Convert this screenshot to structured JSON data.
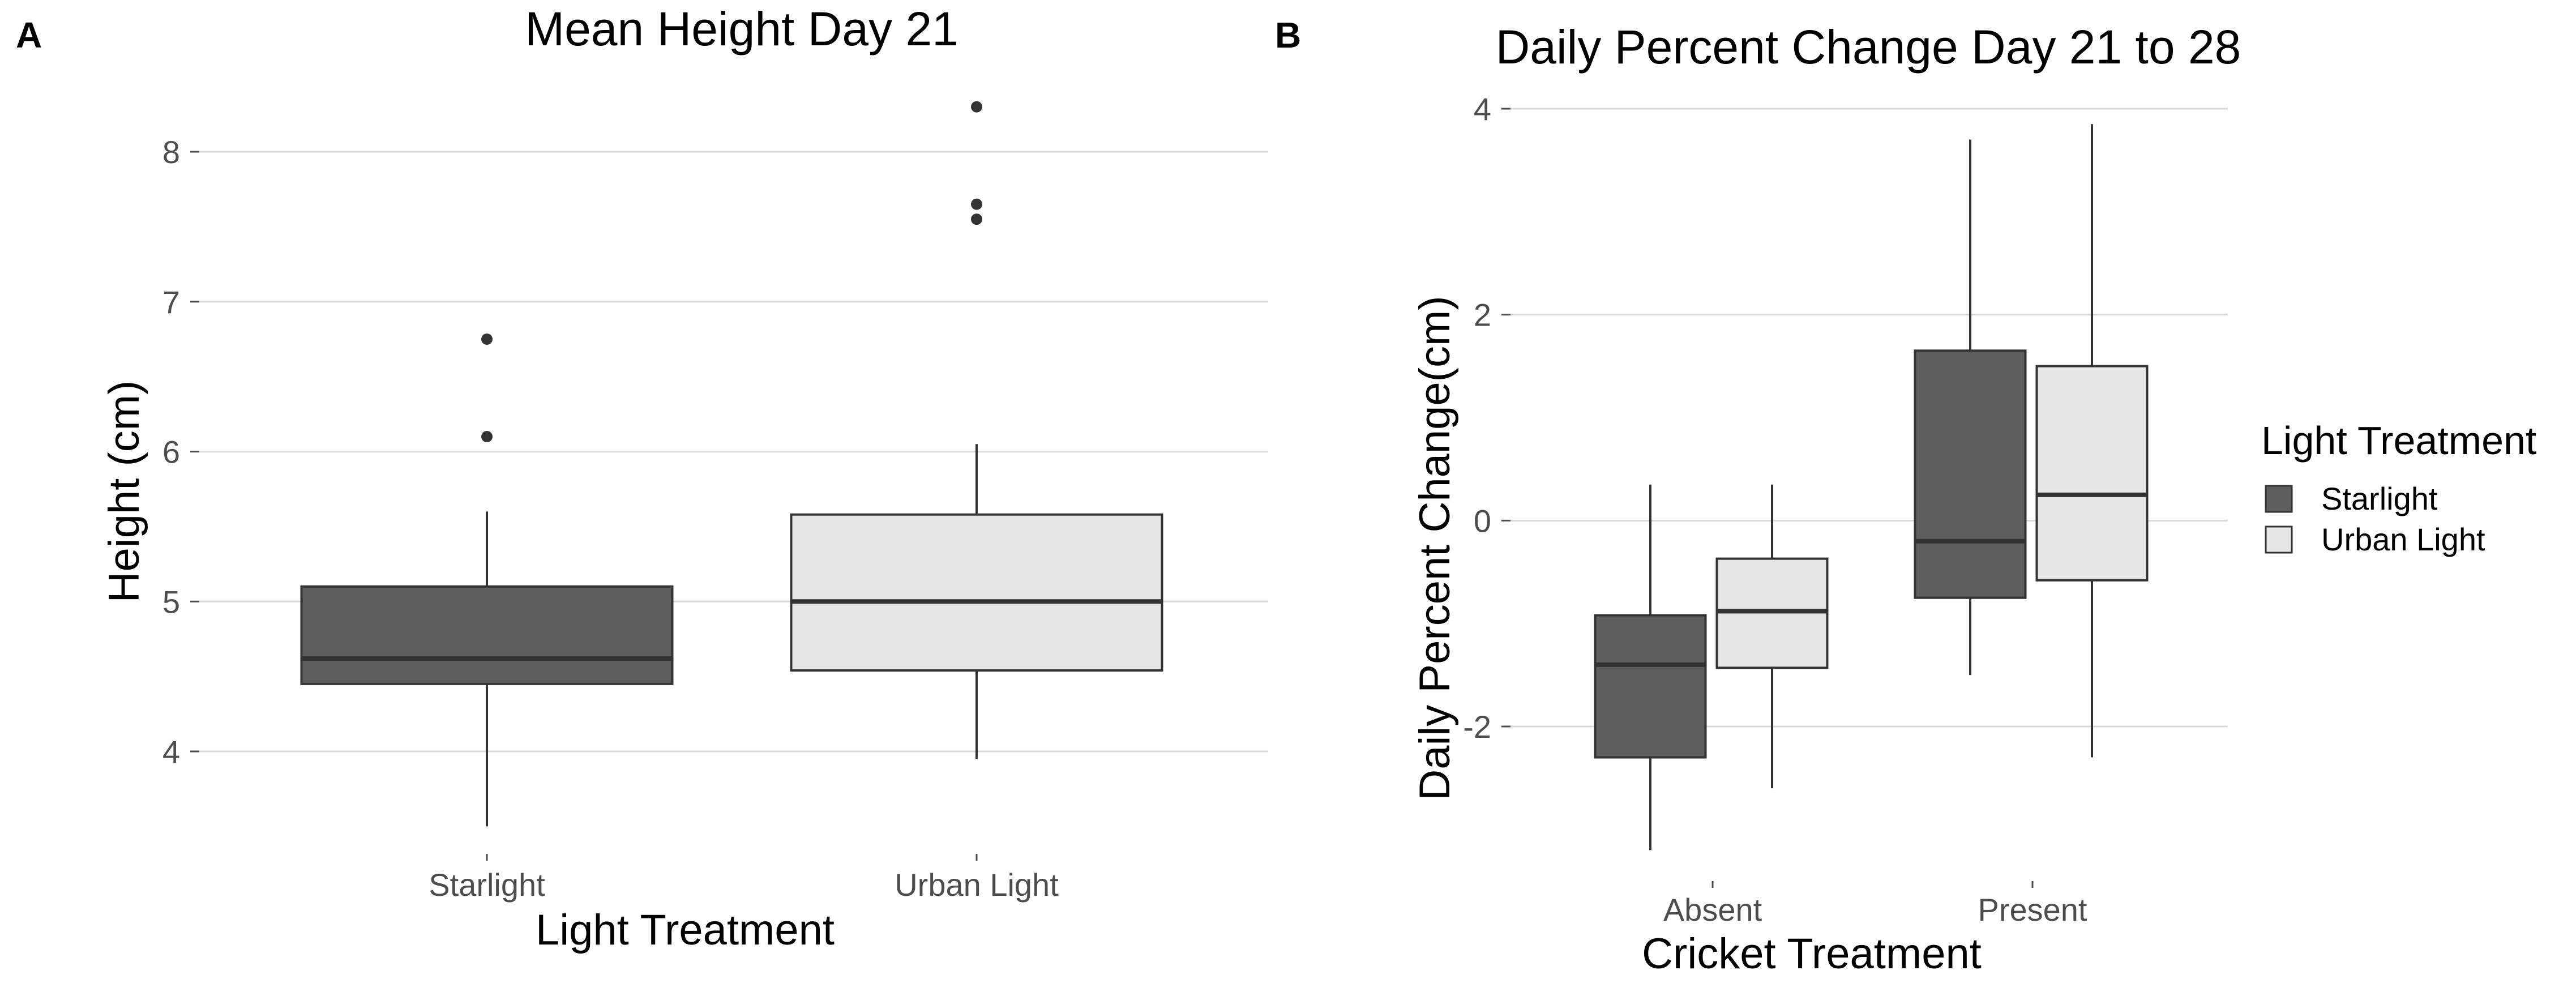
{
  "figure": {
    "panels": [
      "A",
      "B"
    ]
  },
  "colors": {
    "starlight": "#5e5e5e",
    "urban_light": "#e6e6e6",
    "grid": "#d9d9d9",
    "box_stroke": "#333333",
    "whisker": "#333333",
    "outlier": "#333333"
  },
  "chart_data": [
    {
      "panel": "A",
      "type": "box",
      "title": "Mean Height Day 21",
      "xlabel": "Light Treatment",
      "ylabel": "Height (cm)",
      "categories": [
        "Starlight",
        "Urban Light"
      ],
      "ylim": [
        3.3,
        8.5
      ],
      "yticks": [
        4,
        5,
        6,
        7,
        8
      ],
      "ytick_labels": [
        "4",
        "5",
        "6",
        "7",
        "8"
      ],
      "grid": true,
      "boxes": [
        {
          "category": "Starlight",
          "group": "Starlight",
          "whisker_low": 3.5,
          "q1": 4.45,
          "median": 4.62,
          "q3": 5.1,
          "whisker_high": 5.6,
          "outliers": [
            6.1,
            6.75
          ]
        },
        {
          "category": "Urban Light",
          "group": "Urban Light",
          "whisker_low": 3.95,
          "q1": 4.54,
          "median": 5.0,
          "q3": 5.58,
          "whisker_high": 6.05,
          "outliers": [
            7.55,
            7.65,
            8.3
          ]
        }
      ]
    },
    {
      "panel": "B",
      "type": "box",
      "title": "Daily Percent Change Day 21 to 28",
      "xlabel": "Cricket Treatment",
      "ylabel": "Daily Percent Change(cm)",
      "categories": [
        "Absent",
        "Present"
      ],
      "ylim": [
        -3.4,
        4.2
      ],
      "yticks": [
        -2,
        0,
        2,
        4
      ],
      "ytick_labels": [
        "-2",
        "0",
        "2",
        "4"
      ],
      "grid": true,
      "legend": {
        "title": "Light Treatment",
        "entries": [
          "Starlight",
          "Urban Light"
        ],
        "position": "right"
      },
      "boxes": [
        {
          "category": "Absent",
          "group": "Starlight",
          "whisker_low": -3.2,
          "q1": -2.3,
          "median": -1.4,
          "q3": -0.92,
          "whisker_high": 0.35,
          "outliers": []
        },
        {
          "category": "Absent",
          "group": "Urban Light",
          "whisker_low": -2.6,
          "q1": -1.43,
          "median": -0.88,
          "q3": -0.37,
          "whisker_high": 0.35,
          "outliers": []
        },
        {
          "category": "Present",
          "group": "Starlight",
          "whisker_low": -1.5,
          "q1": -0.75,
          "median": -0.2,
          "q3": 1.65,
          "whisker_high": 3.7,
          "outliers": []
        },
        {
          "category": "Present",
          "group": "Urban Light",
          "whisker_low": -2.3,
          "q1": -0.58,
          "median": 0.25,
          "q3": 1.5,
          "whisker_high": 3.85,
          "outliers": []
        }
      ]
    }
  ]
}
